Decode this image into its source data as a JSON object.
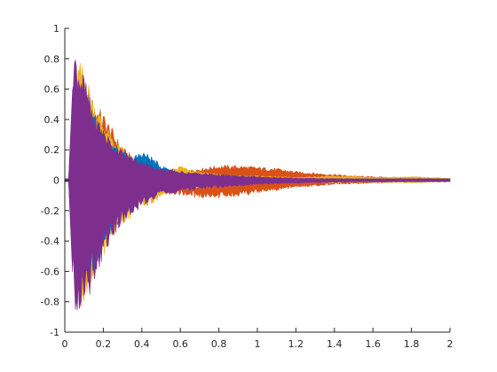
{
  "chart_data": {
    "type": "area",
    "title": "",
    "xlabel": "",
    "ylabel": "",
    "xlim": [
      0,
      2
    ],
    "ylim": [
      -1,
      1
    ],
    "grid": false,
    "legend": "none",
    "x_ticks": [
      0,
      0.2,
      0.4,
      0.6,
      0.8,
      1,
      1.2,
      1.4,
      1.6,
      1.8,
      2
    ],
    "x_tick_labels": [
      "0",
      "0.2",
      "0.4",
      "0.6",
      "0.8",
      "1",
      "1.2",
      "1.4",
      "1.6",
      "1.8",
      "2"
    ],
    "y_ticks": [
      -1,
      -0.8,
      -0.6,
      -0.4,
      -0.2,
      0,
      0.2,
      0.4,
      0.6,
      0.8,
      1
    ],
    "y_tick_labels": [
      "-1",
      "-0.8",
      "-0.6",
      "-0.4",
      "-0.2",
      "0",
      "0.2",
      "0.4",
      "0.6",
      "0.8",
      "1"
    ],
    "series": [
      {
        "color": "#D95319",
        "x": [
          0,
          0.02,
          0.05,
          0.1,
          0.2,
          0.3,
          0.4,
          0.5,
          0.6,
          0.7,
          0.8,
          0.9,
          1.0,
          1.1,
          1.2,
          1.3,
          1.4,
          1.5,
          1.6,
          1.7,
          1.8,
          1.9,
          2.0
        ],
        "upper": [
          0.01,
          0.01,
          0.5,
          0.6,
          0.45,
          0.22,
          0.12,
          0.07,
          0.06,
          0.08,
          0.1,
          0.1,
          0.09,
          0.08,
          0.06,
          0.05,
          0.04,
          0.03,
          0.025,
          0.02,
          0.015,
          0.012,
          0.01
        ],
        "lower": [
          -0.01,
          -0.01,
          -0.5,
          -0.6,
          -0.45,
          -0.25,
          -0.14,
          -0.08,
          -0.1,
          -0.12,
          -0.12,
          -0.11,
          -0.09,
          -0.07,
          -0.05,
          -0.04,
          -0.03,
          -0.025,
          -0.02,
          -0.015,
          -0.012,
          -0.01,
          -0.01
        ]
      },
      {
        "color": "#EDB120",
        "x": [
          0,
          0.02,
          0.05,
          0.08,
          0.1,
          0.15,
          0.2,
          0.25,
          0.3,
          0.4,
          0.5,
          0.6,
          0.7,
          0.8,
          0.9,
          1.0,
          1.2,
          1.4,
          1.6,
          1.8,
          2.0
        ],
        "upper": [
          0.01,
          0.01,
          0.8,
          0.78,
          0.75,
          0.55,
          0.4,
          0.28,
          0.22,
          0.1,
          0.06,
          0.1,
          0.06,
          0.04,
          0.03,
          0.03,
          0.02,
          0.03,
          0.02,
          0.025,
          0.015
        ],
        "lower": [
          -0.01,
          -0.01,
          -0.85,
          -0.85,
          -0.8,
          -0.65,
          -0.5,
          -0.38,
          -0.3,
          -0.2,
          -0.12,
          -0.07,
          -0.05,
          -0.03,
          -0.02,
          -0.02,
          -0.015,
          -0.02,
          -0.015,
          -0.02,
          -0.01
        ]
      },
      {
        "color": "#0072BD",
        "x": [
          0,
          0.02,
          0.05,
          0.1,
          0.15,
          0.2,
          0.25,
          0.3,
          0.35,
          0.4,
          0.45,
          0.5,
          0.55,
          0.6,
          0.7,
          0.8,
          1.0,
          1.2,
          1.4,
          1.6,
          1.8,
          2.0
        ],
        "upper": [
          0.01,
          0.01,
          0.7,
          0.65,
          0.45,
          0.35,
          0.25,
          0.2,
          0.15,
          0.2,
          0.16,
          0.1,
          0.08,
          0.05,
          0.03,
          0.02,
          0.015,
          0.012,
          0.01,
          0.01,
          0.01,
          0.01
        ],
        "lower": [
          -0.01,
          -0.01,
          -0.75,
          -0.7,
          -0.6,
          -0.45,
          -0.32,
          -0.25,
          -0.2,
          -0.15,
          -0.1,
          -0.08,
          -0.05,
          -0.04,
          -0.03,
          -0.02,
          -0.015,
          -0.012,
          -0.01,
          -0.01,
          -0.01,
          -0.01
        ]
      },
      {
        "color": "#7E2F8E",
        "x": [
          0,
          0.02,
          0.05,
          0.07,
          0.1,
          0.15,
          0.2,
          0.25,
          0.3,
          0.35,
          0.4,
          0.45,
          0.5,
          0.6,
          0.7,
          0.8,
          0.9,
          1.0,
          1.2,
          1.4,
          1.6,
          1.8,
          2.0
        ],
        "upper": [
          0.01,
          0.01,
          0.88,
          0.8,
          0.7,
          0.45,
          0.35,
          0.25,
          0.2,
          0.16,
          0.13,
          0.1,
          0.08,
          0.06,
          0.05,
          0.04,
          0.03,
          0.025,
          0.015,
          0.012,
          0.01,
          0.012,
          0.01
        ],
        "lower": [
          -0.01,
          -0.01,
          -0.9,
          -0.93,
          -0.85,
          -0.7,
          -0.5,
          -0.38,
          -0.3,
          -0.22,
          -0.18,
          -0.14,
          -0.11,
          -0.08,
          -0.06,
          -0.05,
          -0.04,
          -0.03,
          -0.02,
          -0.015,
          -0.012,
          -0.01,
          -0.01
        ]
      }
    ]
  }
}
